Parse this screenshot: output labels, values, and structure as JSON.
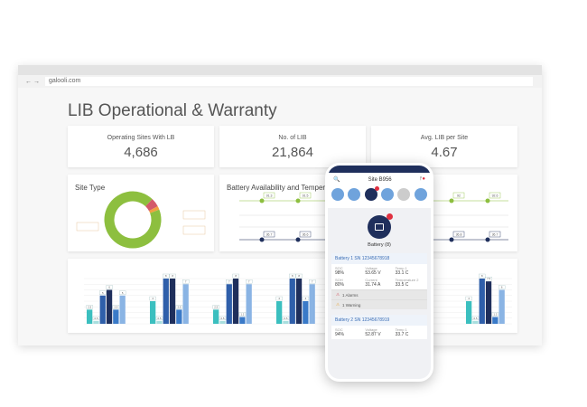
{
  "browser": {
    "url": "galooli.com"
  },
  "title": "LIB Operational & Warranty",
  "kpis": [
    {
      "label": "Operating Sites With LB",
      "value": "4,686"
    },
    {
      "label": "No. of LIB",
      "value": "21,864"
    },
    {
      "label": "Avg. LIB per Site",
      "value": "4.67"
    }
  ],
  "site_type": {
    "title": "Site Type",
    "slices": [
      {
        "value": 93,
        "color": "#8dbf3f"
      },
      {
        "value": 5,
        "color": "#d45a6a"
      },
      {
        "value": 2,
        "color": "#f0a040"
      }
    ]
  },
  "line_chart": {
    "title": "Battery Availability and Temperature",
    "series": [
      {
        "color": "#8dbf3f",
        "values": [
          91.3,
          91.5,
          92,
          92.6
        ]
      },
      {
        "color": "#1f2f5c",
        "values": [
          36.7,
          36.6,
          36.8,
          36.7
        ]
      }
    ]
  },
  "chart_data": {
    "type": "bar",
    "ylim": [
      0,
      8
    ],
    "colors": [
      "#3bbfbf",
      "#a8dede",
      "#2f5faa",
      "#1f2f5c",
      "#3a7ac8",
      "#8ab4e4"
    ],
    "groups": [
      {
        "slot": 0,
        "values": [
          2.5,
          0.5,
          5,
          6,
          2.5,
          5
        ]
      },
      {
        "slot": 1,
        "values": [
          4,
          0.5,
          8,
          8,
          2.5,
          7
        ]
      },
      {
        "slot": 2,
        "values": [
          2.5,
          0.5,
          7,
          8,
          1.2,
          7
        ]
      },
      {
        "slot": 3,
        "values": [
          4,
          0.5,
          8,
          8,
          4,
          7
        ]
      },
      {
        "slot": 6,
        "values": [
          4,
          0.5,
          8,
          7.5,
          1.2,
          6
        ]
      }
    ]
  },
  "phone": {
    "site": "Site B956",
    "battery_label": "Battery (8)",
    "batteries": [
      {
        "name": "Battery 1",
        "sn": "SN 12345678918",
        "fields": [
          {
            "k": "SOC",
            "v": "98%"
          },
          {
            "k": "Voltage",
            "v": "53.65 V"
          },
          {
            "k": "Temp 1",
            "v": "33.1 C"
          },
          {
            "k": "SOH",
            "v": "80%"
          },
          {
            "k": "Current",
            "v": "31.74 A"
          },
          {
            "k": "Temperature 2",
            "v": "33.5 C"
          }
        ]
      },
      {
        "name": "Battery 2",
        "sn": "SN 12345678919",
        "fields": [
          {
            "k": "SOC",
            "v": "94%"
          },
          {
            "k": "Voltage",
            "v": "52.87 V"
          },
          {
            "k": "Temp 1",
            "v": "33.7 C"
          }
        ]
      }
    ],
    "alarms": "1  Alarms",
    "warnings": "1  Warning"
  }
}
